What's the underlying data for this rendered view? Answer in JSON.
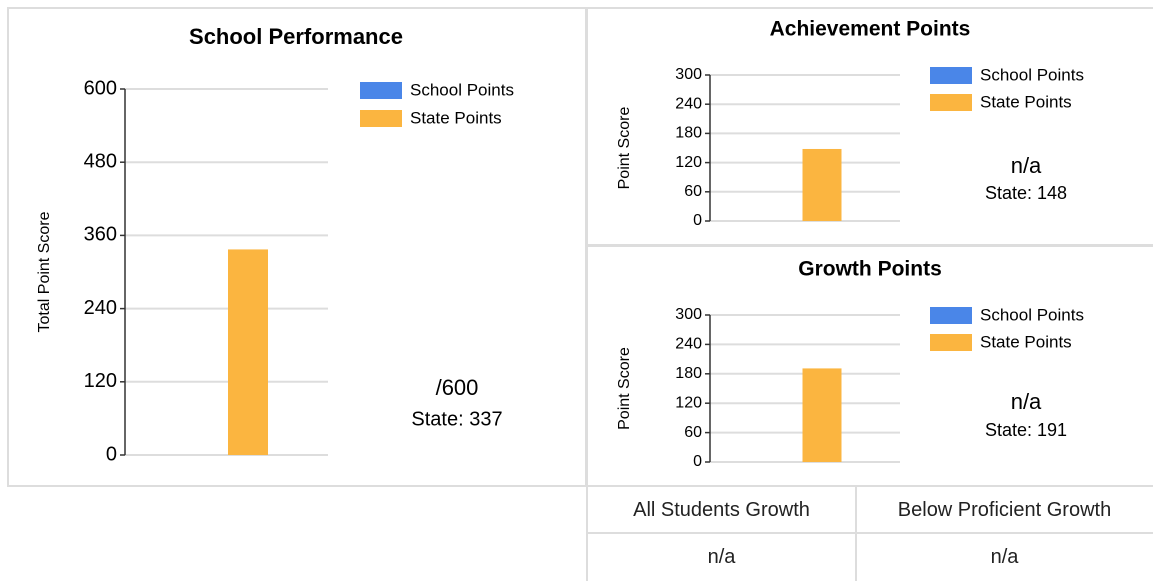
{
  "chart_data": [
    {
      "type": "bar",
      "title": "School Performance",
      "y_label": "Total Point Score",
      "categories": [
        null
      ],
      "series": [
        {
          "name": "School Points",
          "color": "#4a86e8",
          "values": [
            null
          ]
        },
        {
          "name": "State Points",
          "color": "#fbb540",
          "values": [
            337
          ]
        }
      ],
      "ylim": [
        0,
        600
      ],
      "yticks": [
        0,
        120,
        240,
        360,
        480,
        600
      ],
      "grid": true,
      "legend": "top-right",
      "annotations": [
        "/600",
        "State: 337"
      ]
    },
    {
      "type": "bar",
      "title": "Achievement Points",
      "y_label": "Point Score",
      "categories": [
        null
      ],
      "series": [
        {
          "name": "School Points",
          "color": "#4a86e8",
          "values": [
            null
          ]
        },
        {
          "name": "State Points",
          "color": "#fbb540",
          "values": [
            148
          ]
        }
      ],
      "ylim": [
        0,
        300
      ],
      "yticks": [
        0,
        60,
        120,
        180,
        240,
        300
      ],
      "grid": true,
      "legend": "top-right",
      "annotations": [
        "n/a",
        "State: 148"
      ]
    },
    {
      "type": "bar",
      "title": "Growth Points",
      "y_label": "Point Score",
      "categories": [
        null
      ],
      "series": [
        {
          "name": "School Points",
          "color": "#4a86e8",
          "values": [
            null
          ]
        },
        {
          "name": "State Points",
          "color": "#fbb540",
          "values": [
            191
          ]
        }
      ],
      "ylim": [
        0,
        300
      ],
      "yticks": [
        0,
        60,
        120,
        180,
        240,
        300
      ],
      "grid": true,
      "legend": "top-right",
      "annotations": [
        "n/a",
        "State: 191"
      ]
    }
  ],
  "table": {
    "header": [
      "All Students Growth",
      "Below Proficient Growth"
    ],
    "rows": [
      [
        "n/a",
        "n/a"
      ]
    ]
  }
}
